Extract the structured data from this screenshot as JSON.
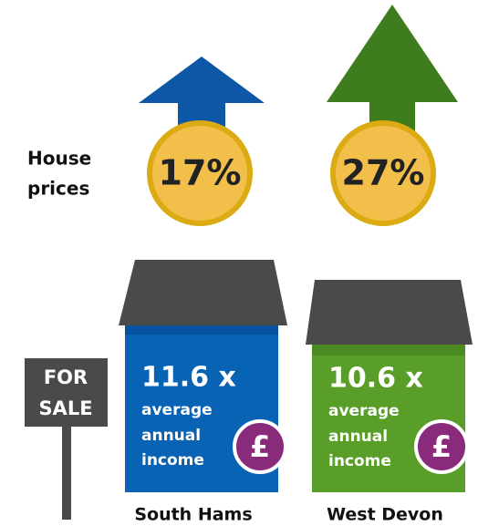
{
  "label_line1": "House",
  "label_line2": "prices",
  "sign": {
    "line1": "FOR",
    "line2": "SALE"
  },
  "areas": [
    {
      "name": "South Hams",
      "price_rise": "17%",
      "ratio": "11.6 x",
      "ratio_text": [
        "average",
        "annual",
        "income"
      ],
      "symbol": "£"
    },
    {
      "name": "West Devon",
      "price_rise": "27%",
      "ratio": "10.6 x",
      "ratio_text": [
        "average",
        "annual",
        "income"
      ],
      "symbol": "£"
    }
  ]
}
